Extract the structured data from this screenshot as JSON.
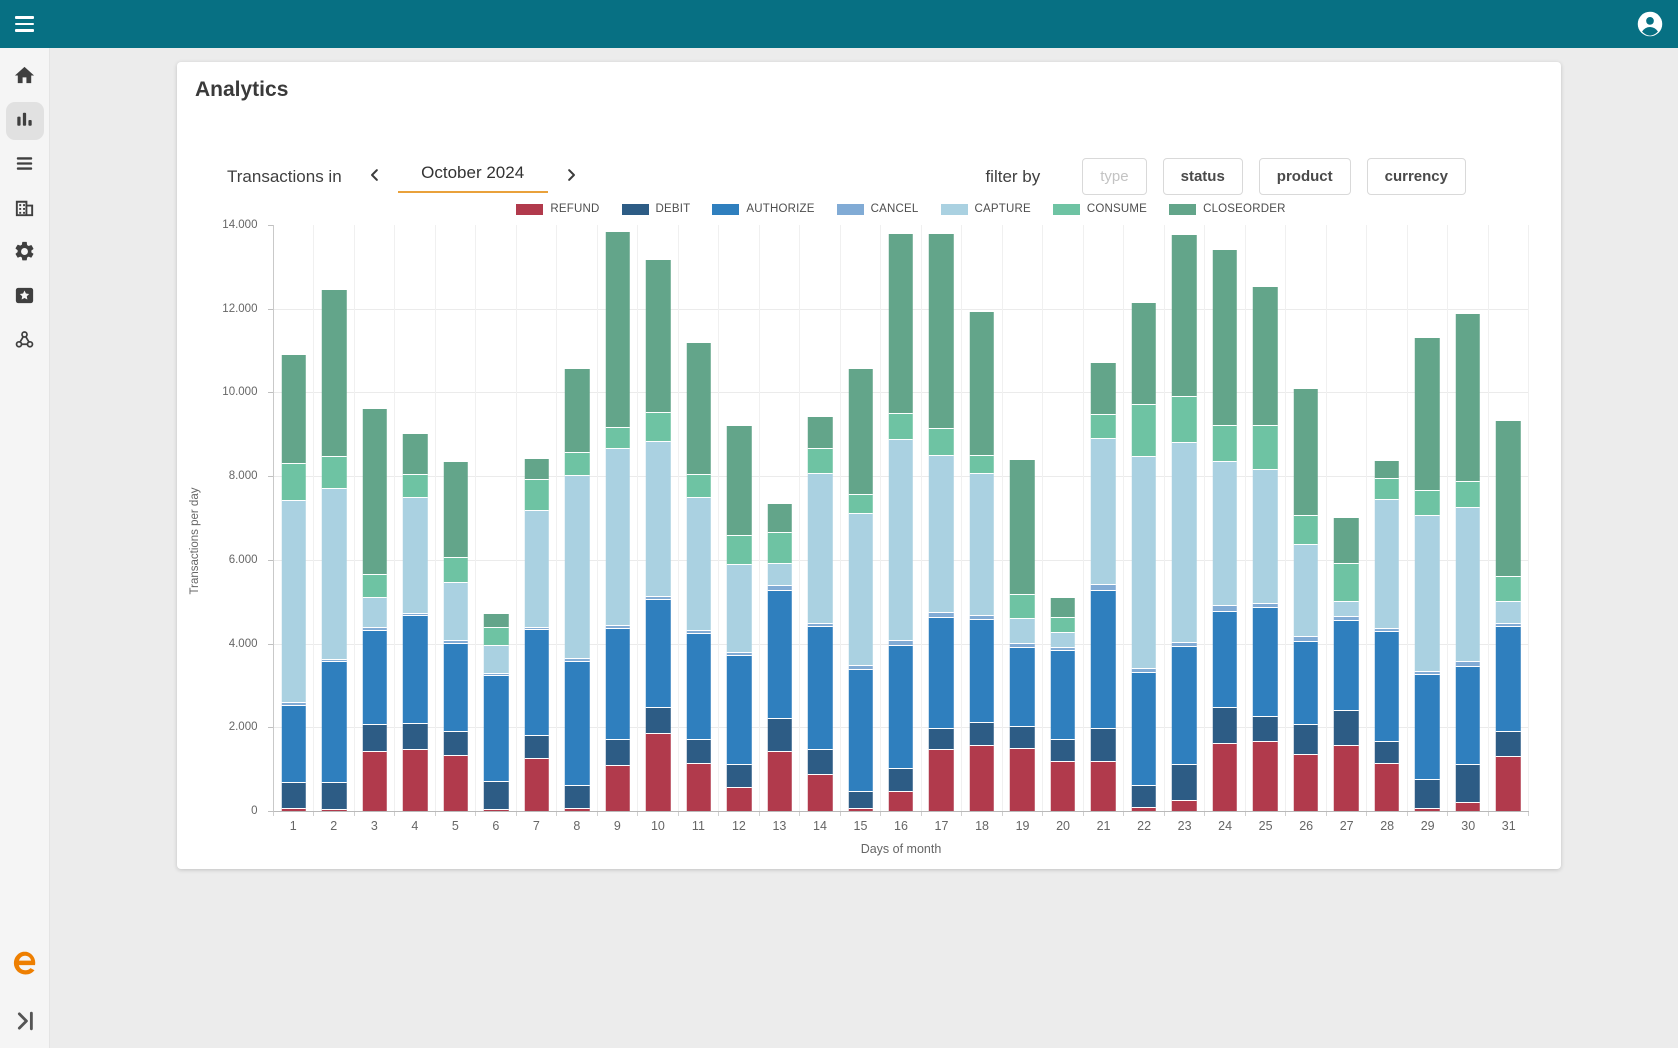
{
  "app_bar": {
    "menu_icon": "hamburger-icon",
    "account_icon": "account-circle-icon",
    "color": "#077083"
  },
  "sidebar": {
    "items": [
      {
        "icon": "home-icon",
        "active": false
      },
      {
        "icon": "bar-chart-icon",
        "active": true
      },
      {
        "icon": "list-icon",
        "active": false
      },
      {
        "icon": "building-icon",
        "active": false
      },
      {
        "icon": "gear-icon",
        "active": false
      },
      {
        "icon": "star-badge-icon",
        "active": false
      },
      {
        "icon": "webhook-icon",
        "active": false
      }
    ],
    "brand_icon": "brand-logo-e",
    "brand_color": "#ee7f01",
    "collapse_icon": "expand-panel-icon"
  },
  "page": {
    "title": "Analytics"
  },
  "period_selector": {
    "label": "Transactions in",
    "value": "October 2024",
    "prev_icon": "chevron-left-icon",
    "next_icon": "chevron-right-icon",
    "underline_color": "#e9a13b"
  },
  "filters": {
    "label": "filter by",
    "buttons": [
      {
        "label": "type",
        "disabled": true
      },
      {
        "label": "status",
        "disabled": false
      },
      {
        "label": "product",
        "disabled": false
      },
      {
        "label": "currency",
        "disabled": false
      }
    ]
  },
  "chart_data": {
    "type": "bar",
    "stacked": true,
    "title": "",
    "xlabel": "Days of month",
    "ylabel": "Transactions per day",
    "ylim": [
      0,
      14000
    ],
    "grid": true,
    "legend_position": "top",
    "categories": [
      1,
      2,
      3,
      4,
      5,
      6,
      7,
      8,
      9,
      10,
      11,
      12,
      13,
      14,
      15,
      16,
      17,
      18,
      19,
      20,
      21,
      22,
      23,
      24,
      25,
      26,
      27,
      28,
      29,
      30,
      31
    ],
    "y_ticks": [
      {
        "label": "14.000",
        "value": 14000
      },
      {
        "label": "12.000",
        "value": 12000
      },
      {
        "label": "10.000",
        "value": 10000
      },
      {
        "label": "8.000",
        "value": 8000
      },
      {
        "label": "6.000",
        "value": 6000
      },
      {
        "label": "4.000",
        "value": 4000
      },
      {
        "label": "2.000",
        "value": 2000
      },
      {
        "label": "0",
        "value": 0
      }
    ],
    "series": [
      {
        "name": "REFUND",
        "color": "#b13a4c",
        "values": [
          60,
          30,
          1400,
          1450,
          1320,
          30,
          1250,
          50,
          1080,
          1850,
          1130,
          550,
          1400,
          850,
          50,
          450,
          1450,
          1550,
          1480,
          1180,
          1170,
          80,
          250,
          1600,
          1650,
          1350,
          1550,
          1130,
          60,
          200,
          1280
        ]
      },
      {
        "name": "DEBIT",
        "color": "#2d5c85",
        "values": [
          600,
          650,
          650,
          620,
          560,
          670,
          550,
          550,
          620,
          600,
          570,
          550,
          800,
          600,
          400,
          550,
          500,
          550,
          520,
          520,
          780,
          520,
          850,
          850,
          600,
          700,
          850,
          520,
          690,
          900,
          620
        ]
      },
      {
        "name": "AUTHORIZE",
        "color": "#2f7fbe",
        "values": [
          1840,
          2870,
          2250,
          2580,
          2120,
          2520,
          2520,
          2960,
          2640,
          2600,
          2530,
          2600,
          3050,
          2950,
          2930,
          2950,
          2670,
          2470,
          1900,
          2120,
          3300,
          2700,
          2820,
          2300,
          2600,
          2000,
          2150,
          2630,
          2500,
          2350,
          2500
        ]
      },
      {
        "name": "CANCEL",
        "color": "#81abd5",
        "values": [
          80,
          60,
          80,
          60,
          60,
          50,
          60,
          80,
          80,
          60,
          60,
          80,
          120,
          80,
          80,
          120,
          100,
          100,
          100,
          80,
          150,
          100,
          100,
          150,
          100,
          100,
          80,
          80,
          80,
          100,
          80
        ]
      },
      {
        "name": "CAPTURE",
        "color": "#aad1e1",
        "values": [
          4820,
          4090,
          720,
          2770,
          1390,
          680,
          2780,
          4360,
          4220,
          3710,
          3190,
          2100,
          530,
          3580,
          3640,
          4800,
          3760,
          3390,
          600,
          350,
          3500,
          5070,
          4780,
          3450,
          3200,
          2200,
          370,
          3060,
          3720,
          3700,
          520
        ]
      },
      {
        "name": "CONSUME",
        "color": "#6ec3a3",
        "values": [
          900,
          750,
          550,
          560,
          590,
          430,
          740,
          560,
          520,
          700,
          560,
          680,
          750,
          600,
          460,
          610,
          650,
          420,
          550,
          370,
          550,
          1230,
          1100,
          850,
          1050,
          690,
          900,
          510,
          600,
          600,
          600
        ]
      },
      {
        "name": "CLOSEORDER",
        "color": "#63a58a",
        "values": [
          2600,
          4000,
          3950,
          960,
          2300,
          340,
          520,
          2010,
          4680,
          3650,
          3140,
          2650,
          680,
          760,
          2990,
          4300,
          4650,
          3440,
          3240,
          480,
          1250,
          2450,
          3860,
          4200,
          3310,
          3040,
          1100,
          440,
          3640,
          4020,
          3710
        ]
      }
    ]
  }
}
